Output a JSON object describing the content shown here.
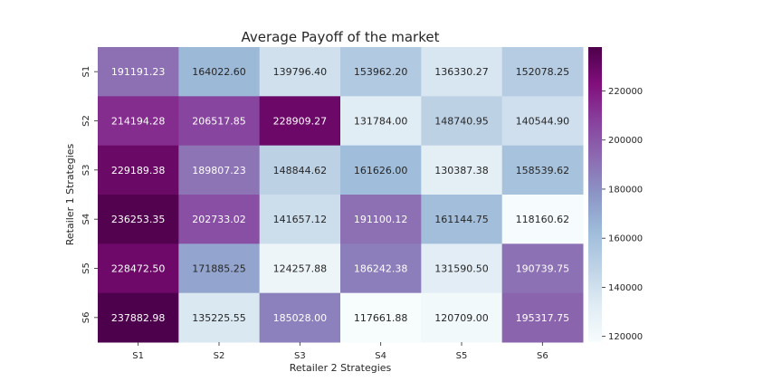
{
  "chart_data": {
    "type": "heatmap",
    "title": "Average Payoff of the market",
    "xlabel": "Retailer 2 Strategies",
    "ylabel": "Retailer 1 Strategies",
    "x_categories": [
      "S1",
      "S2",
      "S3",
      "S4",
      "S5",
      "S6"
    ],
    "y_categories": [
      "S1",
      "S2",
      "S3",
      "S4",
      "S5",
      "S6"
    ],
    "values": [
      [
        191191.23,
        164022.6,
        139796.4,
        153962.2,
        136330.27,
        152078.25
      ],
      [
        214194.28,
        206517.85,
        228909.27,
        131784.0,
        148740.95,
        140544.9
      ],
      [
        229189.38,
        189807.23,
        148844.62,
        161626.0,
        130387.38,
        158539.62
      ],
      [
        236253.35,
        202733.02,
        141657.12,
        191100.12,
        161144.75,
        118160.62
      ],
      [
        228472.5,
        171885.25,
        124257.88,
        186242.38,
        131590.5,
        190739.75
      ],
      [
        237882.98,
        135225.55,
        185028.0,
        117661.88,
        120709.0,
        195317.75
      ]
    ],
    "value_labels": [
      [
        "191191.23",
        "164022.60",
        "139796.40",
        "153962.20",
        "136330.27",
        "152078.25"
      ],
      [
        "214194.28",
        "206517.85",
        "228909.27",
        "131784.00",
        "148740.95",
        "140544.90"
      ],
      [
        "229189.38",
        "189807.23",
        "148844.62",
        "161626.00",
        "130387.38",
        "158539.62"
      ],
      [
        "236253.35",
        "202733.02",
        "141657.12",
        "191100.12",
        "161144.75",
        "118160.62"
      ],
      [
        "228472.50",
        "171885.25",
        "124257.88",
        "186242.38",
        "131590.50",
        "190739.75"
      ],
      [
        "237882.98",
        "135225.55",
        "185028.00",
        "117661.88",
        "120709.00",
        "195317.75"
      ]
    ],
    "colormap": "BuPu",
    "colorbar": {
      "vmin": 117661.88,
      "vmax": 237882.98,
      "ticks": [
        120000,
        140000,
        160000,
        180000,
        200000,
        220000
      ],
      "tick_labels": [
        "120000",
        "140000",
        "160000",
        "180000",
        "200000",
        "220000"
      ]
    },
    "grid": false
  }
}
